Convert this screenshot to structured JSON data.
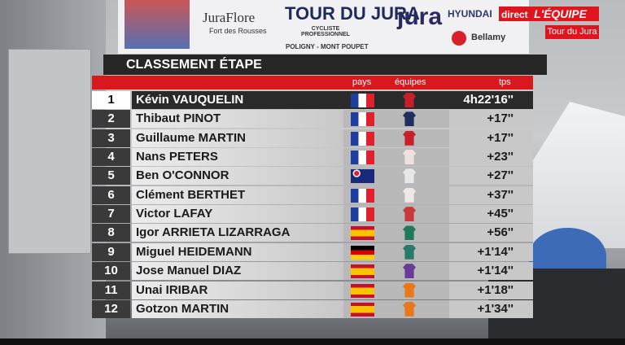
{
  "banner": {
    "sponsor": "JuraFlore",
    "sponsor_sub": "Fort des Rousses",
    "race_logo": "TOUR DU JURA",
    "race_logo_sub": "CYCLISTE PROFESSIONNEL",
    "route": "POLIGNY - MONT POUPET",
    "region": "jura",
    "brand1": "HYUNDAI",
    "brand2": "Bellamy"
  },
  "broadcast": {
    "direct": "direct",
    "channel": "L'ÉQUIPE",
    "event": "Tour du Jura"
  },
  "table": {
    "title": "CLASSEMENT ÉTAPE",
    "columns": [
      "pays",
      "équipes",
      "tps"
    ],
    "rows": [
      [
        "1",
        "Kévin VAUQUELIN",
        "4h22'16''"
      ],
      [
        "2",
        "Thibaut PINOT",
        "+17''"
      ],
      [
        "3",
        "Guillaume MARTIN",
        "+17''"
      ],
      [
        "4",
        "Nans PETERS",
        "+23''"
      ],
      [
        "5",
        "Ben O'CONNOR",
        "+27''"
      ],
      [
        "6",
        "Clément BERTHET",
        "+37''"
      ],
      [
        "7",
        "Victor LAFAY",
        "+45''"
      ],
      [
        "8",
        "Igor ARRIETA LIZARRAGA",
        "+56''"
      ],
      [
        "9",
        "Miguel HEIDEMANN",
        "+1'14''"
      ],
      [
        "10",
        "Jose Manuel DIAZ",
        "+1'14''"
      ],
      [
        "11",
        "Unai IRIBAR",
        "+1'18''"
      ],
      [
        "12",
        "Gotzon MARTIN",
        "+1'34''"
      ]
    ]
  }
}
